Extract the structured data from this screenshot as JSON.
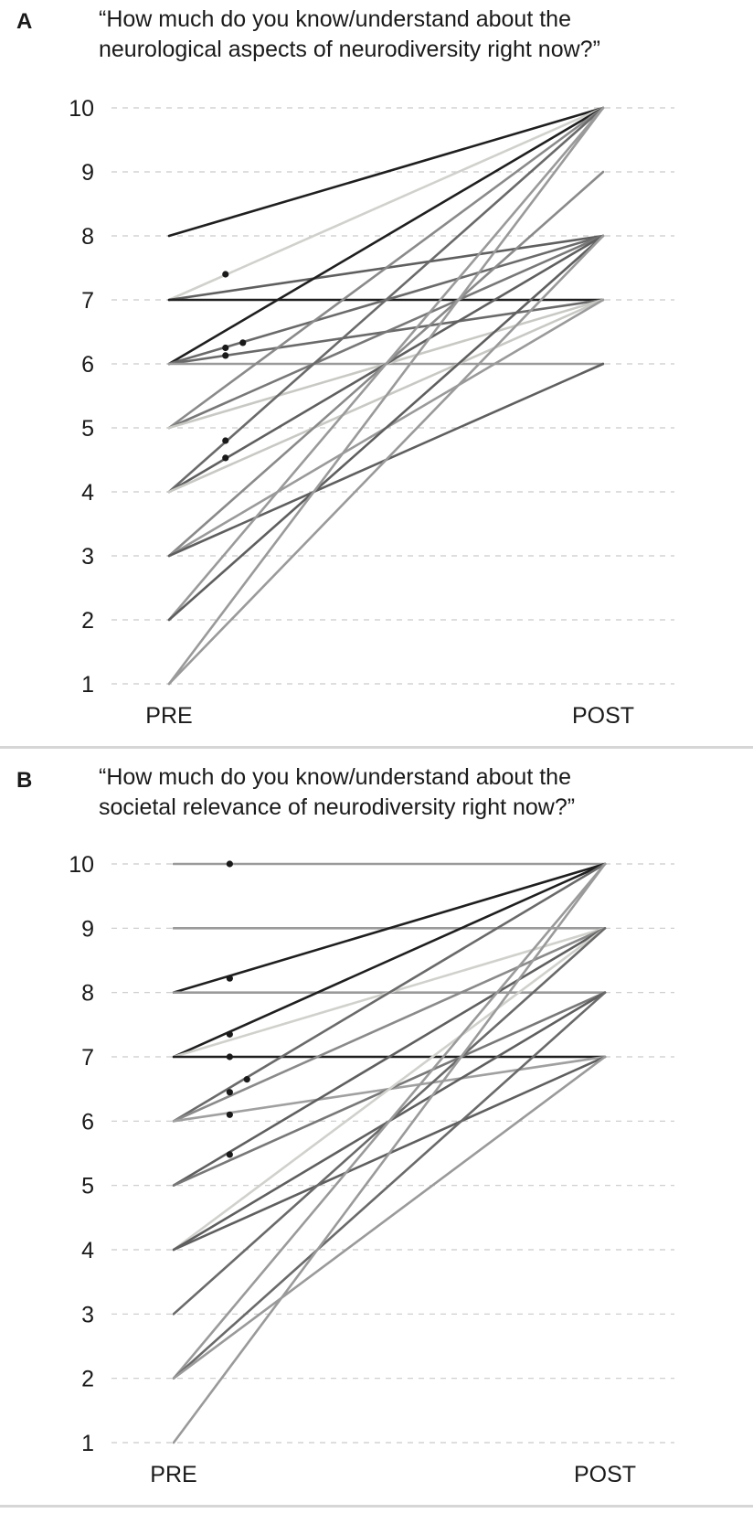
{
  "chart_data": [
    {
      "panel": "A",
      "type": "line",
      "title": "“How much do you know/understand about the neurological aspects of neurodiversity right now?”",
      "title_lines": [
        "“How much do you know/understand about the",
        "neurological aspects of neurodiversity right now?”"
      ],
      "categories": [
        "PRE",
        "POST"
      ],
      "y_ticks": [
        "1",
        "2",
        "3",
        "4",
        "5",
        "6",
        "7",
        "8",
        "9",
        "10"
      ],
      "ylim": [
        1,
        10
      ],
      "grid": "dashed horizontal",
      "series": [
        {
          "values": [
            8,
            10
          ],
          "color": "#1f1f1f"
        },
        {
          "values": [
            7,
            10
          ],
          "color": "#d0d0cc"
        },
        {
          "values": [
            7,
            8
          ],
          "color": "#5f5f5f"
        },
        {
          "values": [
            7,
            7
          ],
          "color": "#1f1f1f"
        },
        {
          "values": [
            6,
            10
          ],
          "color": "#1f1f1f"
        },
        {
          "values": [
            6,
            8
          ],
          "color": "#6a6a6a"
        },
        {
          "values": [
            6,
            7
          ],
          "color": "#6a6a6a"
        },
        {
          "values": [
            6,
            6
          ],
          "color": "#9a9a9a"
        },
        {
          "values": [
            5,
            10
          ],
          "color": "#8a8a8a"
        },
        {
          "values": [
            5,
            8
          ],
          "color": "#787878"
        },
        {
          "values": [
            5,
            7
          ],
          "color": "#c8c8c4"
        },
        {
          "values": [
            4,
            10
          ],
          "color": "#6a6a6a"
        },
        {
          "values": [
            4,
            8
          ],
          "color": "#5f5f5f"
        },
        {
          "values": [
            4,
            7
          ],
          "color": "#c8c8c4"
        },
        {
          "values": [
            3,
            9
          ],
          "color": "#8a8a8a"
        },
        {
          "values": [
            3,
            7
          ],
          "color": "#9a9a9a"
        },
        {
          "values": [
            3,
            6
          ],
          "color": "#5f5f5f"
        },
        {
          "values": [
            2,
            10
          ],
          "color": "#9a9a9a"
        },
        {
          "values": [
            2,
            8
          ],
          "color": "#5f5f5f"
        },
        {
          "values": [
            1,
            10
          ],
          "color": "#9a9a9a"
        },
        {
          "values": [
            1,
            8
          ],
          "color": "#9a9a9a"
        }
      ],
      "points": [
        {
          "x": 0.13,
          "y": 7.4
        },
        {
          "x": 0.13,
          "y": 6.25
        },
        {
          "x": 0.17,
          "y": 6.33
        },
        {
          "x": 0.13,
          "y": 6.13
        },
        {
          "x": 0.13,
          "y": 4.8
        },
        {
          "x": 0.13,
          "y": 4.53
        }
      ]
    },
    {
      "panel": "B",
      "type": "line",
      "title": "“How much do you know/understand about the societal relevance of neurodiversity right now?”",
      "title_lines": [
        "“How much do you know/understand about the",
        "societal relevance of neurodiversity right now?”"
      ],
      "categories": [
        "PRE",
        "POST"
      ],
      "y_ticks": [
        "1",
        "2",
        "3",
        "4",
        "5",
        "6",
        "7",
        "8",
        "9",
        "10"
      ],
      "ylim": [
        1,
        10
      ],
      "grid": "dashed horizontal",
      "series": [
        {
          "values": [
            10,
            10
          ],
          "color": "#9a9a9a"
        },
        {
          "values": [
            9,
            9
          ],
          "color": "#9a9a9a"
        },
        {
          "values": [
            8,
            10
          ],
          "color": "#1f1f1f"
        },
        {
          "values": [
            8,
            8
          ],
          "color": "#9a9a9a"
        },
        {
          "values": [
            7,
            10
          ],
          "color": "#1f1f1f"
        },
        {
          "values": [
            7,
            9
          ],
          "color": "#d0d0cc"
        },
        {
          "values": [
            7,
            7
          ],
          "color": "#1f1f1f"
        },
        {
          "values": [
            6,
            10
          ],
          "color": "#6a6a6a"
        },
        {
          "values": [
            6,
            9
          ],
          "color": "#8a8a8a"
        },
        {
          "values": [
            6,
            7
          ],
          "color": "#a0a0a0"
        },
        {
          "values": [
            5,
            9
          ],
          "color": "#5f5f5f"
        },
        {
          "values": [
            5,
            8
          ],
          "color": "#787878"
        },
        {
          "values": [
            4,
            9
          ],
          "color": "#d0d0cc"
        },
        {
          "values": [
            4,
            8
          ],
          "color": "#5f5f5f"
        },
        {
          "values": [
            4,
            7
          ],
          "color": "#5f5f5f"
        },
        {
          "values": [
            3,
            9
          ],
          "color": "#6a6a6a"
        },
        {
          "values": [
            2,
            10
          ],
          "color": "#9a9a9a"
        },
        {
          "values": [
            2,
            8
          ],
          "color": "#6a6a6a"
        },
        {
          "values": [
            2,
            7
          ],
          "color": "#9a9a9a"
        },
        {
          "values": [
            1,
            10
          ],
          "color": "#9a9a9a"
        }
      ],
      "points": [
        {
          "x": 0.13,
          "y": 10
        },
        {
          "x": 0.13,
          "y": 8.22
        },
        {
          "x": 0.13,
          "y": 7.35
        },
        {
          "x": 0.13,
          "y": 7.0
        },
        {
          "x": 0.17,
          "y": 6.65
        },
        {
          "x": 0.13,
          "y": 6.45
        },
        {
          "x": 0.13,
          "y": 6.1
        },
        {
          "x": 0.13,
          "y": 5.48
        }
      ]
    }
  ]
}
